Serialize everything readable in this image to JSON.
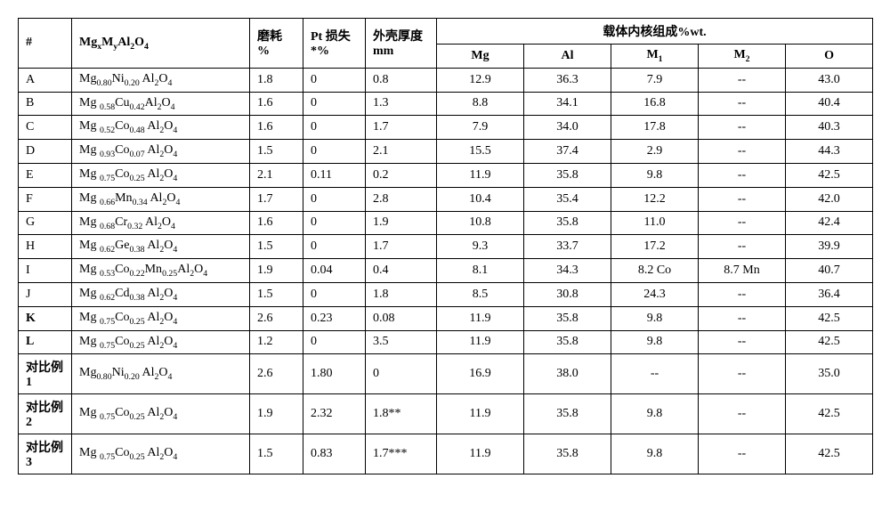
{
  "header": {
    "numCol": "#",
    "formulaCol_html": "Mg<span class='sub'>x</span>M<span class='sub'>y</span>Al<span class='sub'>2</span>O<span class='sub'>4</span>",
    "wearCol_l1": "磨耗",
    "wearCol_l2": "%",
    "ptCol_l1": "Pt 损失",
    "ptCol_l2": "*%",
    "shellCol_l1": "外壳厚度",
    "shellCol_l2": "mm",
    "compHeader": "载体内核组成%wt.",
    "comp_Mg": "Mg",
    "comp_Al": "Al",
    "comp_M1_html": "M<span class='sub'>1</span>",
    "comp_M2_html": "M<span class='sub'>2</span>",
    "comp_O": "O"
  },
  "rows": [
    {
      "id": "A",
      "id_bold": false,
      "formula_html": "Mg<span class='sub'>0.80</span>Ni<span class='sub'>0.20</span> Al<span class='sub'>2</span>O<span class='sub'>4</span>",
      "wear": "1.8",
      "pt": "0",
      "shell": "0.8",
      "Mg": "12.9",
      "Al": "36.3",
      "M1": "7.9",
      "M2": "--",
      "O": "43.0"
    },
    {
      "id": "B",
      "id_bold": false,
      "formula_html": "Mg <span class='sub'>0.58</span>Cu<span class='sub'>0.42</span>Al<span class='sub'>2</span>O<span class='sub'>4</span>",
      "wear": "1.6",
      "pt": "0",
      "shell": "1.3",
      "Mg": "8.8",
      "Al": "34.1",
      "M1": "16.8",
      "M2": "--",
      "O": "40.4"
    },
    {
      "id": "C",
      "id_bold": false,
      "formula_html": "Mg <span class='sub'>0.52</span>Co<span class='sub'>0.48</span> Al<span class='sub'>2</span>O<span class='sub'>4</span>",
      "wear": "1.6",
      "pt": "0",
      "shell": "1.7",
      "Mg": "7.9",
      "Al": "34.0",
      "M1": "17.8",
      "M2": "--",
      "O": "40.3"
    },
    {
      "id": "D",
      "id_bold": false,
      "formula_html": "Mg <span class='sub'>0.93</span>Co<span class='sub'>0.07</span> Al<span class='sub'>2</span>O<span class='sub'>4</span>",
      "wear": "1.5",
      "pt": "0",
      "shell": "2.1",
      "Mg": "15.5",
      "Al": "37.4",
      "M1": "2.9",
      "M2": "--",
      "O": "44.3"
    },
    {
      "id": "E",
      "id_bold": false,
      "formula_html": "Mg <span class='sub'>0.75</span>Co<span class='sub'>0.25</span> Al<span class='sub'>2</span>O<span class='sub'>4</span>",
      "wear": "2.1",
      "pt": "0.11",
      "shell": "0.2",
      "Mg": "11.9",
      "Al": "35.8",
      "M1": "9.8",
      "M2": "--",
      "O": "42.5"
    },
    {
      "id": "F",
      "id_bold": false,
      "formula_html": "Mg <span class='sub'>0.66</span>Mn<span class='sub'>0.34</span> Al<span class='sub'>2</span>O<span class='sub'>4</span>",
      "wear": "1.7",
      "pt": "0",
      "shell": "2.8",
      "Mg": "10.4",
      "Al": "35.4",
      "M1": "12.2",
      "M2": "--",
      "O": "42.0"
    },
    {
      "id": "G",
      "id_bold": false,
      "formula_html": "Mg <span class='sub'>0.68</span>Cr<span class='sub'>0.32</span> Al<span class='sub'>2</span>O<span class='sub'>4</span>",
      "wear": "1.6",
      "pt": "0",
      "shell": "1.9",
      "Mg": "10.8",
      "Al": "35.8",
      "M1": "11.0",
      "M2": "--",
      "O": "42.4"
    },
    {
      "id": "H",
      "id_bold": false,
      "formula_html": "Mg <span class='sub'>0.62</span>Ge<span class='sub'>0.38</span> Al<span class='sub'>2</span>O<span class='sub'>4</span>",
      "wear": "1.5",
      "pt": "0",
      "shell": "1.7",
      "Mg": "9.3",
      "Al": "33.7",
      "M1": "17.2",
      "M2": "--",
      "O": "39.9"
    },
    {
      "id": "I",
      "id_bold": false,
      "formula_html": "Mg <span class='sub'>0.53</span>Co<span class='sub'>0.22</span>Mn<span class='sub'>0.25</span>Al<span class='sub'>2</span>O<span class='sub'>4</span>",
      "wear": "1.9",
      "pt": "0.04",
      "shell": "0.4",
      "Mg": "8.1",
      "Al": "34.3",
      "M1": "8.2 Co",
      "M2": "8.7 Mn",
      "O": "40.7"
    },
    {
      "id": "J",
      "id_bold": false,
      "formula_html": "Mg <span class='sub'>0.62</span>Cd<span class='sub'>0.38</span> Al<span class='sub'>2</span>O<span class='sub'>4</span>",
      "wear": "1.5",
      "pt": "0",
      "shell": "1.8",
      "Mg": "8.5",
      "Al": "30.8",
      "M1": "24.3",
      "M2": "--",
      "O": "36.4"
    },
    {
      "id": "K",
      "id_bold": true,
      "formula_html": "Mg <span class='sub'>0.75</span>Co<span class='sub'>0.25</span> Al<span class='sub'>2</span>O<span class='sub'>4</span>",
      "wear": "2.6",
      "pt": "0.23",
      "shell": "0.08",
      "Mg": "11.9",
      "Al": "35.8",
      "M1": "9.8",
      "M2": "--",
      "O": "42.5"
    },
    {
      "id": "L",
      "id_bold": true,
      "formula_html": "Mg <span class='sub'>0.75</span>Co<span class='sub'>0.25</span> Al<span class='sub'>2</span>O<span class='sub'>4</span>",
      "wear": "1.2",
      "pt": "0",
      "shell": "3.5",
      "Mg": "11.9",
      "Al": "35.8",
      "M1": "9.8",
      "M2": "--",
      "O": "42.5"
    },
    {
      "id": "对比例 1",
      "id_bold": true,
      "formula_html": "Mg<span class='sub'>0.80</span>Ni<span class='sub'>0.20</span> Al<span class='sub'>2</span>O<span class='sub'>4</span>",
      "wear": "2.6",
      "pt": "1.80",
      "shell": "0",
      "Mg": "16.9",
      "Al": "38.0",
      "M1": "--",
      "M2": "--",
      "O": "35.0"
    },
    {
      "id": "对比例 2",
      "id_bold": true,
      "formula_html": "Mg <span class='sub'>0.75</span>Co<span class='sub'>0.25</span> Al<span class='sub'>2</span>O<span class='sub'>4</span>",
      "wear": "1.9",
      "pt": "2.32",
      "shell": "1.8**",
      "Mg": "11.9",
      "Al": "35.8",
      "M1": "9.8",
      "M2": "--",
      "O": "42.5"
    },
    {
      "id": "对比例 3",
      "id_bold": true,
      "formula_html": "Mg <span class='sub'>0.75</span>Co<span class='sub'>0.25</span> Al<span class='sub'>2</span>O<span class='sub'>4</span>",
      "wear": "1.5",
      "pt": "0.83",
      "shell": "1.7***",
      "Mg": "11.9",
      "Al": "35.8",
      "M1": "9.8",
      "M2": "--",
      "O": "42.5"
    }
  ]
}
